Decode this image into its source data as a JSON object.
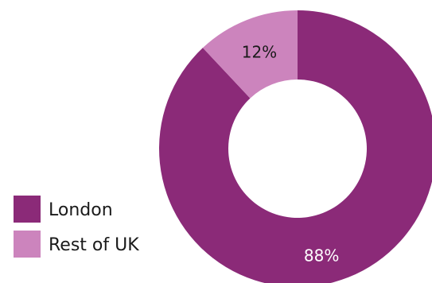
{
  "chart_data": {
    "type": "pie",
    "variant": "donut",
    "categories": [
      "London",
      "Rest of UK"
    ],
    "values": [
      88,
      12
    ],
    "data_labels": [
      "88%",
      "12%"
    ],
    "colors": [
      "#8b2a78",
      "#cc84bd"
    ],
    "label_colors": [
      "#ffffff",
      "#1a1a1a"
    ],
    "legend": {
      "placement": "left-bottom",
      "items": [
        {
          "label": "London",
          "color": "#8b2a78"
        },
        {
          "label": "Rest of UK",
          "color": "#cc84bd"
        }
      ]
    },
    "start": "top",
    "direction": "clockwise"
  }
}
